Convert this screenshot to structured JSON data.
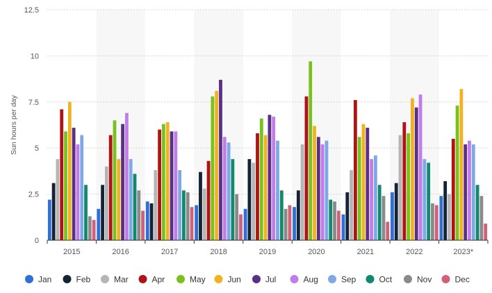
{
  "chart_data": {
    "type": "bar",
    "ylabel": "Sun hours per day",
    "ylim": [
      0,
      12.5
    ],
    "yticks": [
      "0",
      "2.5",
      "5",
      "7.5",
      "10",
      "12.5"
    ],
    "ytick_values": [
      0,
      2.5,
      5,
      7.5,
      10,
      12.5
    ],
    "categories": [
      "2015",
      "2016",
      "2017",
      "2018",
      "2019",
      "2020",
      "2021",
      "2022",
      "2023*"
    ],
    "grid": "horizontal-dotted",
    "legend_position": "bottom",
    "series": [
      {
        "name": "Jan",
        "color": "#2f6fd6",
        "values": [
          2.2,
          1.7,
          2.1,
          1.9,
          1.7,
          1.8,
          1.4,
          2.6,
          2.4
        ]
      },
      {
        "name": "Feb",
        "color": "#152337",
        "values": [
          3.1,
          3.0,
          2.0,
          3.7,
          4.4,
          2.7,
          2.6,
          3.1,
          3.2
        ]
      },
      {
        "name": "Mar",
        "color": "#b5b5b5",
        "values": [
          4.4,
          4.0,
          3.8,
          2.8,
          4.2,
          5.2,
          3.8,
          5.7,
          2.5
        ]
      },
      {
        "name": "Apr",
        "color": "#b01313",
        "values": [
          7.1,
          5.7,
          6.0,
          4.3,
          5.8,
          7.8,
          7.6,
          6.4,
          5.5
        ]
      },
      {
        "name": "May",
        "color": "#78c11f",
        "values": [
          5.9,
          6.5,
          6.3,
          7.8,
          6.6,
          9.7,
          5.6,
          5.8,
          7.3
        ]
      },
      {
        "name": "Jun",
        "color": "#f0b21f",
        "values": [
          7.5,
          4.4,
          6.4,
          8.1,
          5.7,
          6.2,
          6.3,
          7.7,
          8.2
        ]
      },
      {
        "name": "Jul",
        "color": "#5a2f85",
        "values": [
          6.1,
          6.3,
          5.9,
          8.7,
          6.8,
          5.6,
          6.1,
          7.2,
          5.2
        ]
      },
      {
        "name": "Aug",
        "color": "#c07ce8",
        "values": [
          5.2,
          6.9,
          5.9,
          5.6,
          6.7,
          5.2,
          4.4,
          7.9,
          5.4
        ]
      },
      {
        "name": "Sep",
        "color": "#7ea8e6",
        "values": [
          5.7,
          4.4,
          3.8,
          5.3,
          5.4,
          5.4,
          4.6,
          4.4,
          5.2
        ]
      },
      {
        "name": "Oct",
        "color": "#10896e",
        "values": [
          3.0,
          3.6,
          2.7,
          4.4,
          2.7,
          2.2,
          3.0,
          4.2,
          3.0
        ]
      },
      {
        "name": "Nov",
        "color": "#8a8a8a",
        "values": [
          1.3,
          2.7,
          2.6,
          2.5,
          1.7,
          2.1,
          2.4,
          2.0,
          2.4
        ]
      },
      {
        "name": "Dec",
        "color": "#d1607a",
        "values": [
          1.1,
          1.6,
          1.8,
          1.4,
          1.9,
          1.6,
          1.0,
          1.9,
          0.9
        ]
      }
    ]
  }
}
